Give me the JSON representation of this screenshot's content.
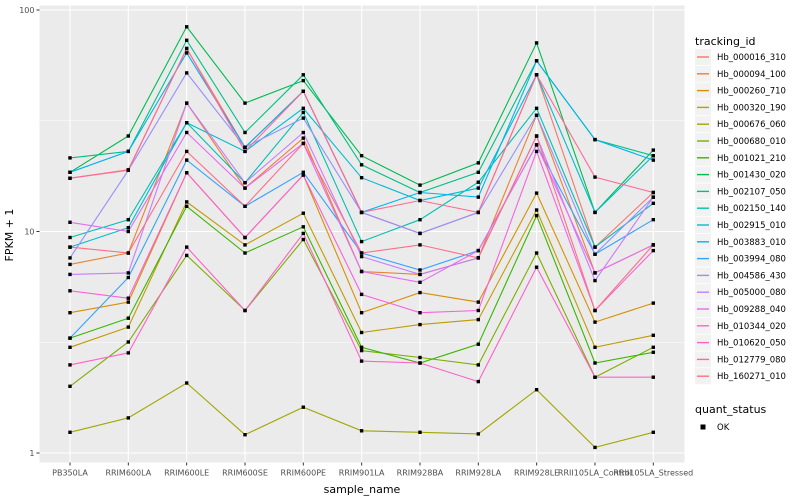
{
  "figure": {
    "background": "#FFFFFF",
    "panel_background": "#EBEBEB",
    "grid_color": "#FFFFFF",
    "tick_color": "#333333",
    "tick_label_color": "#4D4D4D",
    "point_color": "#000000"
  },
  "axes": {
    "y_title": "FPKM + 1",
    "x_title": "sample_name",
    "y_scale": "log10",
    "y_ticks": [
      {
        "label": "100",
        "value": 100
      },
      {
        "label": "10",
        "value": 10
      },
      {
        "label": "1",
        "value": 1
      }
    ],
    "y_minor_breaks": [
      3.162,
      31.62
    ]
  },
  "legend": {
    "title": "tracking_id"
  },
  "legend2": {
    "title": "quant_status",
    "items": [
      {
        "label": "OK",
        "shape": "filled-square",
        "color": "#000000"
      }
    ]
  },
  "chart_data": {
    "type": "line",
    "title": "",
    "xlabel": "sample_name",
    "ylabel": "FPKM + 1",
    "y_scale": "log10",
    "ylim": [
      1,
      100
    ],
    "grid": true,
    "legend_position": "right",
    "point_shape": "filled-square",
    "point_color": "#000000",
    "categories": [
      "PB350LA",
      "RRIM600LA",
      "RRIM600LE",
      "RRIM600SE",
      "RRIM600PE",
      "RRIM901LA",
      "RRIM928BA",
      "RRIM928LA",
      "RRIM928LE",
      "RRII105LA_Control",
      "RRII105LA_Stressed"
    ],
    "series": [
      {
        "name": "Hb_000016_310",
        "color": "#F8766D",
        "values": [
          17.4,
          19.0,
          67,
          24,
          43,
          12.2,
          9.8,
          12.2,
          51,
          8.5,
          15.0
        ]
      },
      {
        "name": "Hb_000094_100",
        "color": "#EA8331",
        "values": [
          7.1,
          8.0,
          38,
          15.7,
          26.4,
          6.6,
          6.4,
          7.6,
          33.5,
          6.5,
          8.7
        ]
      },
      {
        "name": "Hb_000260_710",
        "color": "#D89000",
        "values": [
          4.3,
          4.8,
          18.4,
          9.4,
          18.0,
          4.3,
          5.3,
          4.8,
          14.9,
          3.9,
          4.75
        ]
      },
      {
        "name": "Hb_000320_190",
        "color": "#C09B00",
        "values": [
          3.0,
          3.7,
          13.6,
          8.7,
          12.1,
          3.5,
          3.8,
          4.0,
          12.5,
          3.0,
          3.4
        ]
      },
      {
        "name": "Hb_000676_060",
        "color": "#A3A500",
        "values": [
          1.24,
          1.44,
          2.07,
          1.21,
          1.61,
          1.26,
          1.24,
          1.22,
          1.93,
          1.06,
          1.24
        ]
      },
      {
        "name": "Hb_000680_010",
        "color": "#7CAE00",
        "values": [
          2.0,
          3.17,
          7.8,
          4.4,
          9.2,
          2.9,
          2.7,
          2.5,
          8.0,
          2.2,
          3.0
        ]
      },
      {
        "name": "Hb_001021_210",
        "color": "#39B600",
        "values": [
          3.3,
          4.06,
          13.0,
          8.0,
          10.5,
          3.0,
          2.55,
          3.1,
          11.8,
          2.55,
          2.85
        ]
      },
      {
        "name": "Hb_001430_020",
        "color": "#00BB4E",
        "values": [
          18.5,
          27.0,
          84,
          38,
          48,
          22,
          16.2,
          20.4,
          71,
          12.2,
          23.3
        ]
      },
      {
        "name": "Hb_002107_050",
        "color": "#00C087",
        "values": [
          21.5,
          23.0,
          73,
          28,
          51,
          20,
          15.0,
          18.5,
          59,
          26,
          22.0
        ]
      },
      {
        "name": "Hb_002150_140",
        "color": "#00C0B2",
        "values": [
          9.4,
          11.3,
          31,
          16.6,
          34.5,
          9.0,
          11.3,
          16.7,
          36,
          8.5,
          13.4
        ]
      },
      {
        "name": "Hb_002915_010",
        "color": "#00BDD3",
        "values": [
          8.5,
          10.4,
          31,
          23,
          36,
          17.5,
          13.8,
          15.7,
          51,
          12.2,
          22.0
        ]
      },
      {
        "name": "Hb_003883_010",
        "color": "#00B4EF",
        "values": [
          18.5,
          23.0,
          64,
          24,
          43,
          12.2,
          15.0,
          14.3,
          59,
          26,
          21.0
        ]
      },
      {
        "name": "Hb_003994_080",
        "color": "#35A2FF",
        "values": [
          3.3,
          6.2,
          21,
          13.0,
          18.5,
          8.0,
          6.7,
          8.2,
          24.6,
          7.9,
          11.3
        ]
      },
      {
        "name": "Hb_004586_430",
        "color": "#9590FF",
        "values": [
          7.6,
          18.9,
          52,
          24,
          32.5,
          12.2,
          9.8,
          12.2,
          33.5,
          7.9,
          14.3
        ]
      },
      {
        "name": "Hb_005000_080",
        "color": "#C77CFF",
        "values": [
          6.4,
          6.5,
          38,
          16.6,
          28,
          7.7,
          6.4,
          7.6,
          27,
          6.0,
          14.3
        ]
      },
      {
        "name": "Hb_009288_040",
        "color": "#E76BF3",
        "values": [
          11.0,
          10.0,
          28,
          15.7,
          25,
          6.6,
          5.9,
          8.2,
          24.6,
          6.5,
          8.7
        ]
      },
      {
        "name": "Hb_010344_020",
        "color": "#FA62DB",
        "values": [
          5.4,
          5.0,
          18.4,
          9.4,
          18.0,
          5.2,
          4.3,
          4.4,
          23,
          4.4,
          8.2
        ]
      },
      {
        "name": "Hb_010620_050",
        "color": "#FF61C9",
        "values": [
          2.5,
          2.83,
          8.5,
          4.4,
          9.8,
          2.6,
          2.55,
          2.1,
          6.9,
          2.2,
          2.2
        ]
      },
      {
        "name": "Hb_012779_080",
        "color": "#FF6A98",
        "values": [
          17.4,
          18.9,
          67,
          23,
          43,
          12.2,
          13.8,
          12.2,
          51,
          17.6,
          15.0
        ]
      },
      {
        "name": "Hb_160271_010",
        "color": "#FD6F86",
        "values": [
          8.5,
          8.0,
          23,
          13.0,
          25,
          8.0,
          8.7,
          7.6,
          27,
          4.4,
          8.7
        ]
      }
    ]
  }
}
